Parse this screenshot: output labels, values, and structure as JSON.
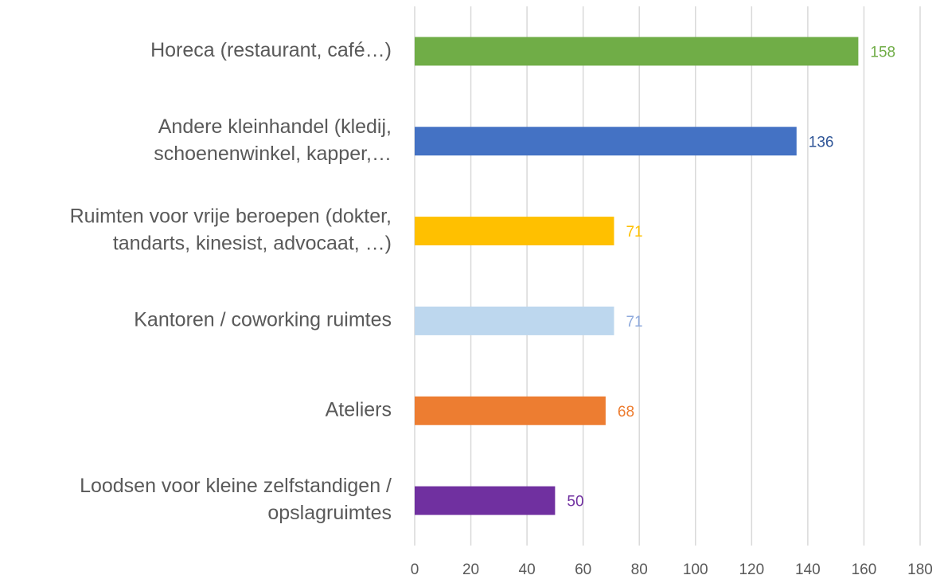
{
  "chart_data": {
    "type": "barh",
    "categories": [
      [
        "Horeca (restaurant, café…)"
      ],
      [
        "Andere kleinhandel (kledij,",
        "schoenenwinkel, kapper,…"
      ],
      [
        "Ruimten voor vrije beroepen (dokter,",
        "tandarts, kinesist, advocaat, …)"
      ],
      [
        "Kantoren / coworking ruimtes"
      ],
      [
        "Ateliers"
      ],
      [
        "Loodsen voor kleine zelfstandigen /",
        "opslagruimtes"
      ]
    ],
    "values": [
      158,
      136,
      71,
      71,
      68,
      50
    ],
    "colors": [
      "#70ad47",
      "#4472c4",
      "#ffc000",
      "#bdd7ee",
      "#ed7d31",
      "#7030a0"
    ],
    "label_colors": [
      "#70ad47",
      "#2f5597",
      "#ffc000",
      "#8faadc",
      "#ed7d31",
      "#7030a0"
    ],
    "xlim": [
      0,
      180
    ],
    "xticks": [
      0,
      20,
      40,
      60,
      80,
      100,
      120,
      140,
      160,
      180
    ],
    "grid": true
  }
}
